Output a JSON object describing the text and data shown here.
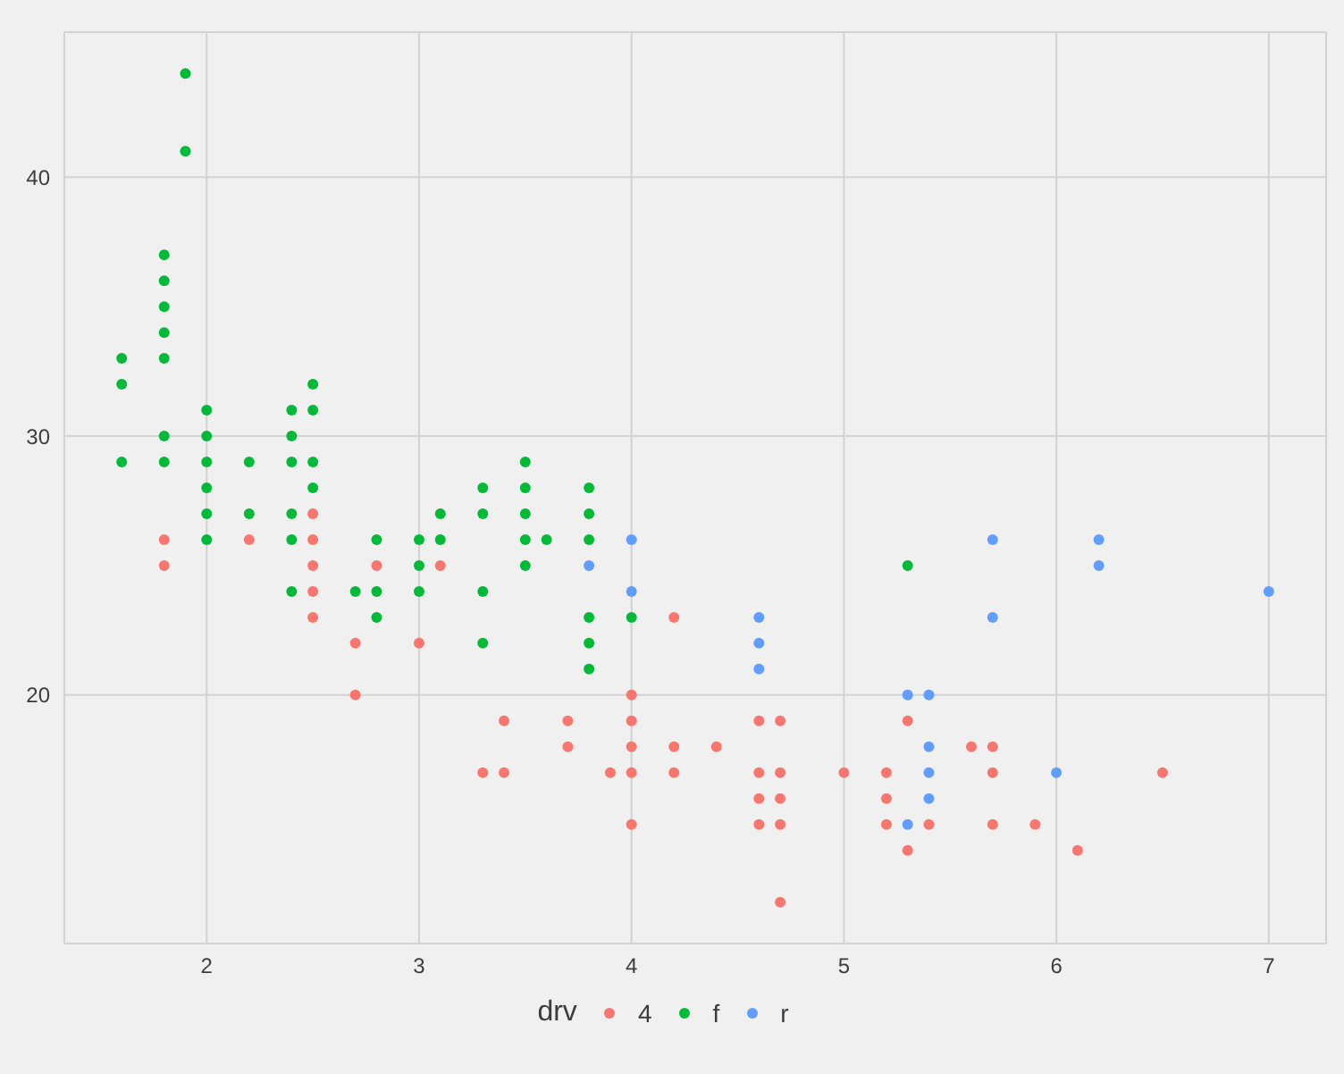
{
  "chart_data": {
    "type": "scatter",
    "legend_title": "drv",
    "legend": "bottom",
    "grid": true,
    "marker": "circle",
    "xlim": [
      1.33,
      7.27
    ],
    "xticks": [
      2,
      3,
      4,
      5,
      6,
      7
    ],
    "ylim": [
      10.4,
      45.6
    ],
    "yticks": [
      20,
      30,
      40
    ],
    "series": [
      {
        "name": "4",
        "color": "#f8766d",
        "x": [
          1.8,
          1.8,
          2.2,
          2.5,
          2.5,
          2.5,
          2.5,
          2.5,
          2.7,
          2.7,
          2.8,
          3.0,
          3.1,
          3.3,
          3.4,
          3.4,
          3.7,
          3.7,
          3.9,
          4.0,
          4.0,
          4.0,
          4.0,
          4.0,
          4.2,
          4.2,
          4.2,
          4.4,
          4.6,
          4.6,
          4.6,
          4.6,
          4.7,
          4.7,
          4.7,
          4.7,
          4.7,
          5.0,
          5.2,
          5.2,
          5.2,
          5.3,
          5.3,
          5.4,
          5.6,
          5.7,
          5.7,
          5.7,
          5.9,
          6.1,
          6.5
        ],
        "values": [
          26,
          25,
          26,
          27,
          26,
          25,
          24,
          23,
          22,
          20,
          25,
          22,
          25,
          17,
          19,
          17,
          19,
          18,
          17,
          20,
          19,
          18,
          17,
          15,
          23,
          18,
          17,
          18,
          19,
          17,
          16,
          15,
          19,
          17,
          16,
          15,
          12,
          17,
          17,
          16,
          15,
          19,
          14,
          15,
          18,
          18,
          17,
          15,
          15,
          14,
          17
        ]
      },
      {
        "name": "f",
        "color": "#00ba38",
        "x": [
          1.6,
          1.6,
          1.6,
          1.8,
          1.8,
          1.8,
          1.8,
          1.8,
          1.8,
          1.8,
          1.9,
          1.9,
          2.0,
          2.0,
          2.0,
          2.0,
          2.0,
          2.0,
          2.2,
          2.2,
          2.4,
          2.4,
          2.4,
          2.4,
          2.4,
          2.4,
          2.5,
          2.5,
          2.5,
          2.5,
          2.7,
          2.8,
          2.8,
          2.8,
          3.0,
          3.0,
          3.0,
          3.1,
          3.1,
          3.3,
          3.3,
          3.3,
          3.3,
          3.5,
          3.5,
          3.5,
          3.5,
          3.5,
          3.6,
          3.8,
          3.8,
          3.8,
          3.8,
          3.8,
          3.8,
          4.0,
          5.3
        ],
        "values": [
          33,
          32,
          29,
          37,
          36,
          35,
          34,
          33,
          30,
          29,
          44,
          41,
          31,
          30,
          29,
          28,
          27,
          26,
          29,
          27,
          31,
          30,
          29,
          27,
          26,
          24,
          32,
          31,
          29,
          28,
          24,
          26,
          24,
          23,
          26,
          25,
          24,
          27,
          26,
          28,
          27,
          24,
          22,
          29,
          28,
          27,
          26,
          25,
          26,
          28,
          27,
          26,
          23,
          22,
          21,
          23,
          25
        ]
      },
      {
        "name": "r",
        "color": "#619cff",
        "x": [
          3.8,
          4.0,
          4.0,
          4.6,
          4.6,
          4.6,
          5.3,
          5.3,
          5.4,
          5.4,
          5.4,
          5.4,
          5.7,
          5.7,
          6.0,
          6.2,
          6.2,
          7.0
        ],
        "values": [
          25,
          26,
          24,
          23,
          22,
          21,
          20,
          15,
          20,
          18,
          17,
          16,
          26,
          23,
          17,
          26,
          25,
          24
        ]
      }
    ]
  }
}
